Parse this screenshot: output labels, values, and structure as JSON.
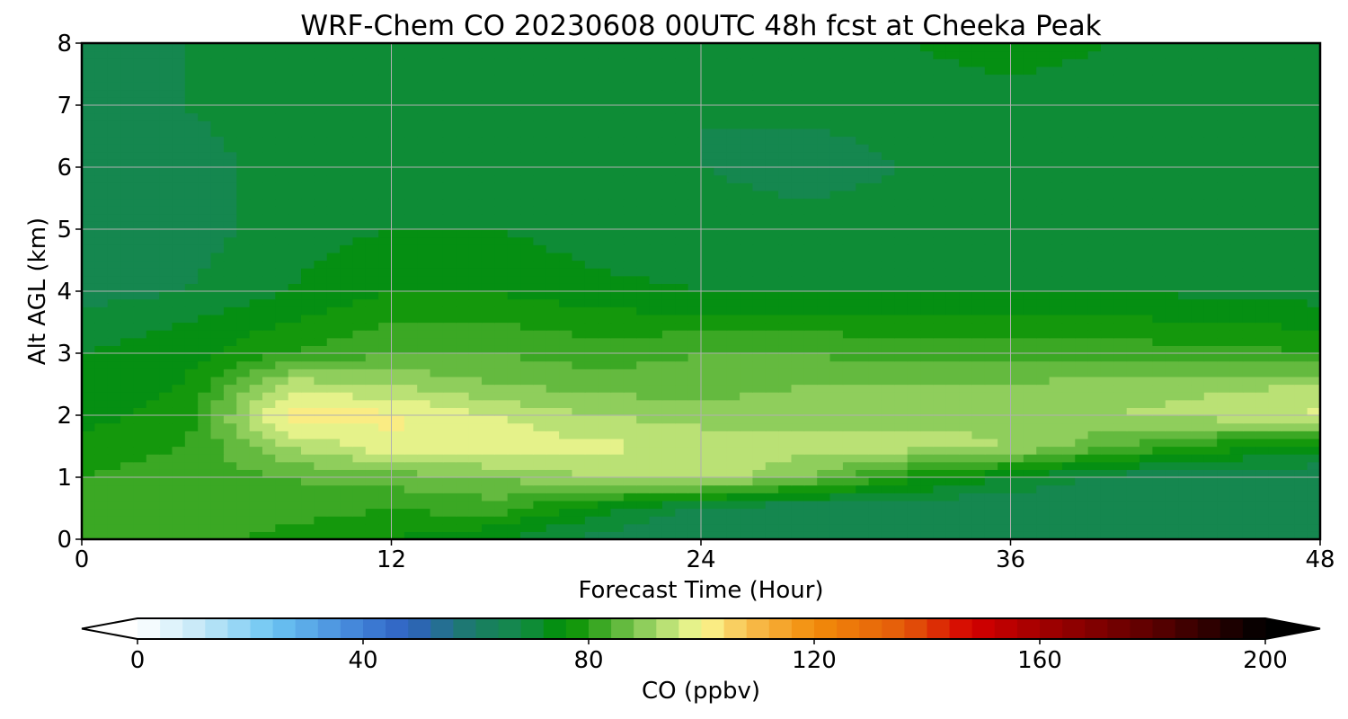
{
  "chart_data": {
    "type": "heatmap",
    "title": "WRF-Chem CO  20230608 00UTC 48h fcst at Cheeka Peak",
    "xlabel": "Forecast Time (Hour)",
    "ylabel": "Alt AGL (km)",
    "xlim": [
      0,
      48
    ],
    "ylim": [
      0,
      8
    ],
    "x_ticks": [
      0,
      12,
      24,
      36,
      48
    ],
    "y_ticks": [
      0,
      1,
      2,
      3,
      4,
      5,
      6,
      7,
      8
    ],
    "grid": true,
    "x": [
      0,
      4,
      8,
      12,
      16,
      20,
      24,
      28,
      32,
      36,
      40,
      44,
      48
    ],
    "y": [
      0,
      0.5,
      1,
      1.5,
      2,
      2.5,
      3,
      3.5,
      4,
      5,
      6,
      7,
      8
    ],
    "z": [
      [
        80,
        82,
        78,
        76,
        72,
        66,
        64,
        64,
        64,
        64,
        64,
        64,
        64
      ],
      [
        84,
        84,
        82,
        80,
        82,
        74,
        66,
        64,
        64,
        64,
        64,
        64,
        64
      ],
      [
        80,
        82,
        84,
        86,
        88,
        92,
        95,
        88,
        78,
        72,
        66,
        64,
        64
      ],
      [
        78,
        80,
        92,
        99,
        99,
        97,
        95,
        94,
        94,
        92,
        84,
        78,
        74
      ],
      [
        74,
        78,
        102,
        101,
        96,
        92,
        90,
        90,
        90,
        91,
        92,
        94,
        97
      ],
      [
        74,
        76,
        94,
        92,
        88,
        86,
        86,
        88,
        88,
        88,
        90,
        91,
        92
      ],
      [
        72,
        74,
        80,
        84,
        84,
        82,
        84,
        84,
        82,
        82,
        82,
        82,
        80
      ],
      [
        70,
        72,
        76,
        80,
        80,
        78,
        78,
        78,
        78,
        77,
        77,
        76,
        75
      ],
      [
        66,
        68,
        72,
        76,
        76,
        73,
        72,
        72,
        72,
        72,
        72,
        71,
        70
      ],
      [
        64,
        66,
        70,
        72,
        72,
        70,
        70,
        70,
        70,
        69,
        68,
        68,
        68
      ],
      [
        64,
        66,
        70,
        70,
        70,
        68,
        68,
        66,
        68,
        68,
        68,
        68,
        68
      ],
      [
        68,
        68,
        70,
        70,
        70,
        70,
        68,
        69,
        70,
        70,
        70,
        70,
        70
      ],
      [
        66,
        68,
        68,
        70,
        70,
        70,
        70,
        72,
        72,
        74,
        72,
        72,
        72
      ]
    ],
    "colorbar": {
      "label": "CO  (ppbv)",
      "range": [
        0,
        200
      ],
      "ticks": [
        0,
        40,
        80,
        120,
        160,
        200
      ],
      "extend": "both",
      "level_step": 4,
      "under_color": "#ffffff",
      "over_color": "#000000",
      "stops": [
        {
          "v": 0,
          "c": "#ffffff"
        },
        {
          "v": 12,
          "c": "#bfe6f7"
        },
        {
          "v": 24,
          "c": "#6cc5f2"
        },
        {
          "v": 40,
          "c": "#3f7fd6"
        },
        {
          "v": 48,
          "c": "#2f62c0"
        },
        {
          "v": 60,
          "c": "#1a7c64"
        },
        {
          "v": 68,
          "c": "#138a48"
        },
        {
          "v": 76,
          "c": "#009000"
        },
        {
          "v": 84,
          "c": "#4eb030"
        },
        {
          "v": 92,
          "c": "#a4d86a"
        },
        {
          "v": 100,
          "c": "#fafa94"
        },
        {
          "v": 108,
          "c": "#f8c050"
        },
        {
          "v": 120,
          "c": "#f28c0a"
        },
        {
          "v": 136,
          "c": "#e45a0a"
        },
        {
          "v": 148,
          "c": "#d40000"
        },
        {
          "v": 160,
          "c": "#a30000"
        },
        {
          "v": 180,
          "c": "#5c0000"
        },
        {
          "v": 200,
          "c": "#000000"
        }
      ]
    }
  }
}
